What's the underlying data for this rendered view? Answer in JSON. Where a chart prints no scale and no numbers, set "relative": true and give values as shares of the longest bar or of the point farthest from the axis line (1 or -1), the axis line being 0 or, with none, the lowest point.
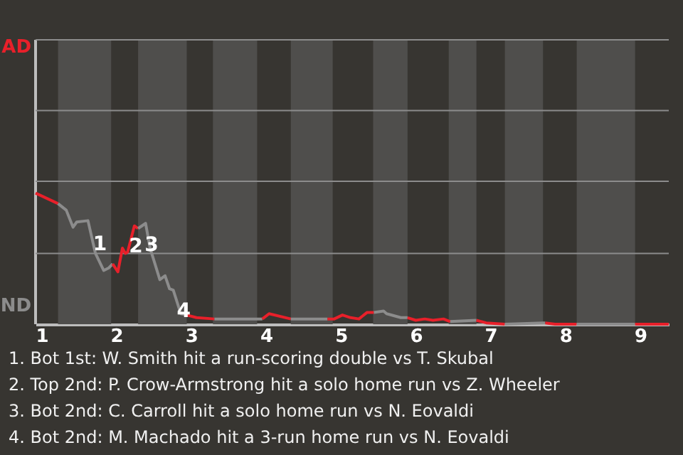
{
  "chart_data": {
    "type": "line",
    "relative": true,
    "xlim": [
      0.92,
      9.38
    ],
    "xticks": [
      1,
      2,
      3,
      4,
      5,
      6,
      7,
      8,
      9
    ],
    "marker": "none",
    "line_style": "solid",
    "ref_lines": [
      {
        "axis": "y",
        "value": 0.54,
        "color": "#8c8c8c"
      },
      {
        "axis": "y",
        "value": 1.09,
        "color": "#8c8c8c"
      },
      {
        "axis": "y",
        "value": 1.63,
        "color": "#8c8c8c"
      },
      {
        "axis": "y",
        "value": 2.17,
        "color": "#8c8c8c"
      }
    ],
    "series": [
      {
        "color": "#e8202a",
        "x": [
          0.92,
          1.22
        ],
        "values": [
          1,
          0.92
        ]
      },
      {
        "color": "#8c8c8c",
        "x": [
          1.22,
          1.33,
          1.42,
          1.47,
          1.62,
          1.72,
          1.83,
          1.9,
          1.95
        ],
        "values": [
          0.92,
          0.87,
          0.74,
          0.78,
          0.79,
          0.54,
          0.41,
          0.43,
          0.46
        ]
      },
      {
        "color": "#e8202a",
        "x": [
          1.95,
          2.02,
          2.08,
          2.12,
          2.15,
          2.24,
          2.29
        ],
        "values": [
          0.46,
          0.4,
          0.58,
          0.54,
          0.55,
          0.75,
          0.73
        ]
      },
      {
        "color": "#8c8c8c",
        "x": [
          2.29,
          2.34,
          2.39,
          2.45,
          2.51,
          2.58,
          2.65,
          2.71,
          2.76,
          2.86,
          2.94
        ],
        "values": [
          0.73,
          0.75,
          0.77,
          0.58,
          0.47,
          0.34,
          0.37,
          0.27,
          0.26,
          0.08,
          0.07
        ]
      },
      {
        "color": "#e8202a",
        "x": [
          2.94,
          3.07,
          3.31
        ],
        "values": [
          0.07,
          0.05,
          0.04
        ]
      },
      {
        "color": "#8c8c8c",
        "x": [
          3.31,
          3.95
        ],
        "values": [
          0.04,
          0.04
        ]
      },
      {
        "color": "#e8202a",
        "x": [
          3.95,
          4.04,
          4.33
        ],
        "values": [
          0.04,
          0.08,
          0.04
        ]
      },
      {
        "color": "#8c8c8c",
        "x": [
          4.33,
          4.82
        ],
        "values": [
          0.04,
          0.04
        ]
      },
      {
        "color": "#e8202a",
        "x": [
          4.82,
          4.91,
          5.02,
          5.13,
          5.24,
          5.35,
          5.44
        ],
        "values": [
          0.04,
          0.04,
          0.07,
          0.05,
          0.04,
          0.09,
          0.09
        ]
      },
      {
        "color": "#8c8c8c",
        "x": [
          5.44,
          5.57,
          5.61,
          5.8,
          5.89
        ],
        "values": [
          0.09,
          0.1,
          0.08,
          0.05,
          0.05
        ]
      },
      {
        "color": "#e8202a",
        "x": [
          5.89,
          6.0,
          6.12,
          6.23,
          6.37,
          6.46
        ],
        "values": [
          0.05,
          0.03,
          0.04,
          0.03,
          0.04,
          0.02
        ]
      },
      {
        "color": "#8c8c8c",
        "x": [
          6.46,
          6.81
        ],
        "values": [
          0.02,
          0.03
        ]
      },
      {
        "color": "#e8202a",
        "x": [
          6.81,
          6.94,
          7.19
        ],
        "values": [
          0.03,
          0.01,
          0
        ]
      },
      {
        "color": "#8c8c8c",
        "x": [
          7.19,
          7.73
        ],
        "values": [
          0,
          0.01
        ]
      },
      {
        "color": "#e8202a",
        "x": [
          7.73,
          7.86,
          8.15
        ],
        "values": [
          0.01,
          0,
          0
        ]
      },
      {
        "color": "#8c8c8c",
        "x": [
          8.15,
          8.93
        ],
        "values": [
          0,
          0
        ]
      },
      {
        "color": "#e8202a",
        "x": [
          8.93,
          9.38
        ],
        "values": [
          0,
          0
        ]
      }
    ],
    "bands": [
      {
        "axis": "x",
        "from": 1.22,
        "to": 1.93,
        "color": "#4f4e4c"
      },
      {
        "axis": "x",
        "from": 2.29,
        "to": 2.94,
        "color": "#4f4e4c"
      },
      {
        "axis": "x",
        "from": 3.29,
        "to": 3.88,
        "color": "#4f4e4c"
      },
      {
        "axis": "x",
        "from": 4.33,
        "to": 4.89,
        "color": "#4f4e4c"
      },
      {
        "axis": "x",
        "from": 5.43,
        "to": 5.89,
        "color": "#4f4e4c"
      },
      {
        "axis": "x",
        "from": 6.44,
        "to": 6.81,
        "color": "#4f4e4c"
      },
      {
        "axis": "x",
        "from": 7.19,
        "to": 7.7,
        "color": "#4f4e4c"
      },
      {
        "axis": "x",
        "from": 8.15,
        "to": 8.93,
        "color": "#4f4e4c"
      }
    ],
    "annotations": [
      "AD",
      "ND",
      {
        "text": "1",
        "x": 1.78,
        "y": 0.61
      },
      {
        "text": "2",
        "x": 2.26,
        "y": 0.59
      },
      {
        "text": "3",
        "x": 2.47,
        "y": 0.6
      },
      {
        "text": "4",
        "x": 2.9,
        "y": 0.1
      },
      "1. Bot 1st: W. Smith hit a run-scoring double vs T. Skubal",
      "2. Top 2nd: P. Crow-Armstrong hit a solo home run vs Z. Wheeler",
      "3. Bot 2nd: C. Carroll hit a solo home run vs N. Eovaldi",
      "4. Bot 2nd: M. Machado hit a 3-run home run vs N. Eovaldi"
    ]
  }
}
